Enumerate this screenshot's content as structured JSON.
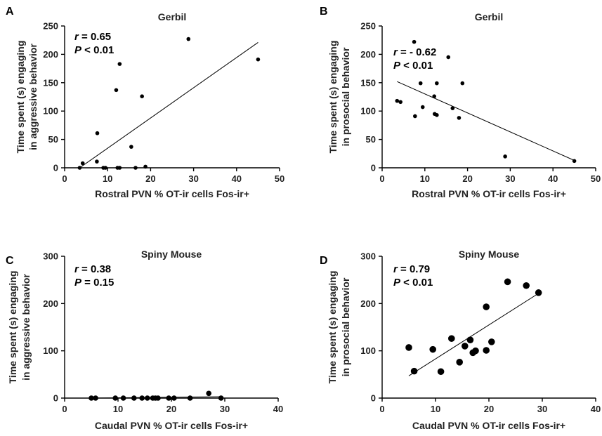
{
  "chart_data": [
    {
      "type": "scatter",
      "panel": "A",
      "title": "Gerbil",
      "xlabel": "Rostral PVN % OT-ir cells Fos-ir+",
      "ylabel_lines": [
        "Time spent (s) engaging",
        "in aggressive behavior"
      ],
      "xlim": [
        0,
        50
      ],
      "ylim": [
        0,
        250
      ],
      "xticks": [
        0,
        10,
        20,
        30,
        40,
        50
      ],
      "yticks": [
        0,
        50,
        100,
        150,
        200,
        250
      ],
      "stats": {
        "r_symbol": "r",
        "r_value": " = 0.65",
        "p_symbol": "P",
        "p_value": " < 0.01"
      },
      "fit": {
        "x": [
          3.5,
          45
        ],
        "y": [
          0,
          221
        ]
      },
      "points": [
        {
          "x": 3.5,
          "y": 0
        },
        {
          "x": 4.2,
          "y": 8
        },
        {
          "x": 7.5,
          "y": 11
        },
        {
          "x": 7.6,
          "y": 61
        },
        {
          "x": 9.0,
          "y": 0
        },
        {
          "x": 9.5,
          "y": 0
        },
        {
          "x": 12.0,
          "y": 137
        },
        {
          "x": 12.3,
          "y": 0
        },
        {
          "x": 12.8,
          "y": 0
        },
        {
          "x": 12.8,
          "y": 183
        },
        {
          "x": 15.5,
          "y": 37
        },
        {
          "x": 16.5,
          "y": 0
        },
        {
          "x": 18.0,
          "y": 126
        },
        {
          "x": 18.8,
          "y": 2
        },
        {
          "x": 28.8,
          "y": 227
        },
        {
          "x": 45.0,
          "y": 191
        }
      ],
      "point_radius": 2.8
    },
    {
      "type": "scatter",
      "panel": "B",
      "title": "Gerbil",
      "xlabel": "Rostral PVN % OT-ir cells Fos-ir+",
      "ylabel_lines": [
        "Time spent (s) engaging",
        "in prosocial behavior"
      ],
      "xlim": [
        0,
        50
      ],
      "ylim": [
        0,
        250
      ],
      "xticks": [
        0,
        10,
        20,
        30,
        40,
        50
      ],
      "yticks": [
        0,
        50,
        100,
        150,
        200,
        250
      ],
      "stats": {
        "r_symbol": "r",
        "r_value": " = - 0.62",
        "p_symbol": "P",
        "p_value": " < 0.01"
      },
      "fit": {
        "x": [
          3.5,
          45
        ],
        "y": [
          152,
          13
        ]
      },
      "points": [
        {
          "x": 3.5,
          "y": 118
        },
        {
          "x": 4.3,
          "y": 116
        },
        {
          "x": 7.5,
          "y": 222
        },
        {
          "x": 7.7,
          "y": 91
        },
        {
          "x": 9.0,
          "y": 149
        },
        {
          "x": 9.5,
          "y": 107
        },
        {
          "x": 12.2,
          "y": 126
        },
        {
          "x": 12.3,
          "y": 95
        },
        {
          "x": 12.8,
          "y": 93
        },
        {
          "x": 12.8,
          "y": 149
        },
        {
          "x": 15.5,
          "y": 195
        },
        {
          "x": 16.5,
          "y": 105
        },
        {
          "x": 18.0,
          "y": 88
        },
        {
          "x": 18.8,
          "y": 149
        },
        {
          "x": 28.8,
          "y": 20
        },
        {
          "x": 45.0,
          "y": 12
        }
      ],
      "point_radius": 2.8
    },
    {
      "type": "scatter",
      "panel": "C",
      "title": "Spiny Mouse",
      "xlabel": "Caudal PVN % OT-ir cells Fos-ir+",
      "ylabel_lines": [
        "Time spent (s) engaging",
        "in aggressive behavior"
      ],
      "xlim": [
        0,
        40
      ],
      "ylim": [
        0,
        300
      ],
      "xticks": [
        0,
        10,
        20,
        30,
        40
      ],
      "yticks": [
        0,
        100,
        200,
        300
      ],
      "stats": {
        "r_symbol": "r",
        "r_value": " = 0.38",
        "p_symbol": "P",
        "p_value": " = 0.15"
      },
      "fit": {
        "x": [
          5,
          29.5
        ],
        "y": [
          0,
          3
        ]
      },
      "points": [
        {
          "x": 5.0,
          "y": 0
        },
        {
          "x": 5.8,
          "y": 0
        },
        {
          "x": 9.5,
          "y": 0
        },
        {
          "x": 11.0,
          "y": 0
        },
        {
          "x": 13.0,
          "y": 0
        },
        {
          "x": 14.5,
          "y": 0
        },
        {
          "x": 15.5,
          "y": 0
        },
        {
          "x": 16.5,
          "y": 0
        },
        {
          "x": 17.0,
          "y": 0
        },
        {
          "x": 17.5,
          "y": 0
        },
        {
          "x": 19.5,
          "y": 0
        },
        {
          "x": 20.5,
          "y": 0
        },
        {
          "x": 23.5,
          "y": 0
        },
        {
          "x": 27.0,
          "y": 10
        },
        {
          "x": 29.3,
          "y": 0
        }
      ],
      "point_radius": 3.8
    },
    {
      "type": "scatter",
      "panel": "D",
      "title": "Spiny Mouse",
      "xlabel": "Caudal PVN % OT-ir cells Fos-ir+",
      "ylabel_lines": [
        "Time spent (s) engaging",
        "in prosocial behavior"
      ],
      "xlim": [
        0,
        40
      ],
      "ylim": [
        0,
        300
      ],
      "xticks": [
        0,
        10,
        20,
        30,
        40
      ],
      "yticks": [
        0,
        100,
        200,
        300
      ],
      "stats": {
        "r_symbol": "r",
        "r_value": " = 0.79",
        "p_symbol": "P",
        "p_value": " < 0.01"
      },
      "fit": {
        "x": [
          5,
          29.5
        ],
        "y": [
          47,
          223
        ]
      },
      "points": [
        {
          "x": 5.0,
          "y": 107
        },
        {
          "x": 6.0,
          "y": 57
        },
        {
          "x": 9.5,
          "y": 103
        },
        {
          "x": 11.0,
          "y": 56
        },
        {
          "x": 13.0,
          "y": 126
        },
        {
          "x": 14.5,
          "y": 76
        },
        {
          "x": 15.5,
          "y": 110
        },
        {
          "x": 16.5,
          "y": 123
        },
        {
          "x": 17.0,
          "y": 96
        },
        {
          "x": 17.5,
          "y": 100
        },
        {
          "x": 19.5,
          "y": 193
        },
        {
          "x": 19.5,
          "y": 101
        },
        {
          "x": 20.5,
          "y": 119
        },
        {
          "x": 23.5,
          "y": 246
        },
        {
          "x": 27.0,
          "y": 238
        },
        {
          "x": 29.3,
          "y": 223
        }
      ],
      "point_radius": 4.8
    }
  ]
}
